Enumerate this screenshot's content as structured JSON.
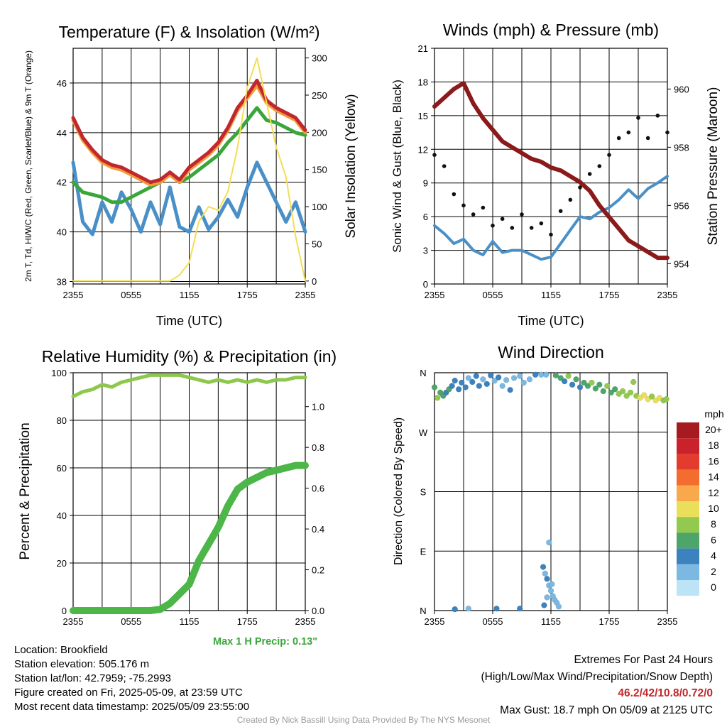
{
  "chart_data": [
    {
      "type": "line",
      "title": "Temperature (F) & Insolation (W/m²)",
      "xlabel": "Time (UTC)",
      "ylabel": "2m T, Td, HI/WC (Red, Green, Scarlet/Blue) & 9m T (Orange)",
      "y2label": "Solar Insolation (Yellow)",
      "x_ticks": [
        "2355",
        "0555",
        "1155",
        "1755",
        "2355"
      ],
      "ylim": [
        37.9,
        47.4
      ],
      "y_ticks": [
        38,
        40,
        42,
        44,
        46
      ],
      "y2lim": [
        -4,
        313
      ],
      "y2_ticks": [
        0,
        50,
        100,
        150,
        200,
        250,
        300
      ],
      "series": [
        {
          "color": "#c0282d",
          "axis": "left",
          "x": [
            0,
            1,
            2,
            3,
            4,
            5,
            6,
            7,
            8,
            9,
            10,
            11,
            12,
            13,
            14,
            15,
            16,
            17,
            18,
            19,
            20,
            21,
            22,
            23,
            24
          ],
          "values": [
            44.6,
            43.8,
            43.3,
            42.9,
            42.7,
            42.6,
            42.4,
            42.2,
            42.0,
            42.1,
            42.4,
            42.1,
            42.6,
            42.9,
            43.2,
            43.6,
            44.2,
            45.0,
            45.5,
            46.1,
            45.3,
            45.0,
            44.8,
            44.6,
            44.1
          ]
        },
        {
          "color": "#f39a3b",
          "axis": "left",
          "x": [
            0,
            1,
            2,
            3,
            4,
            5,
            6,
            7,
            8,
            9,
            10,
            11,
            12,
            13,
            14,
            15,
            16,
            17,
            18,
            19,
            20,
            21,
            22,
            23,
            24
          ],
          "values": [
            44.5,
            43.7,
            43.2,
            42.8,
            42.6,
            42.5,
            42.3,
            42.1,
            41.9,
            42.0,
            42.3,
            42.0,
            42.5,
            42.8,
            43.1,
            43.5,
            44.1,
            44.9,
            45.4,
            45.9,
            45.2,
            44.9,
            44.7,
            44.5,
            44.0
          ]
        },
        {
          "color": "#3aa63a",
          "axis": "left",
          "x": [
            0,
            1,
            2,
            3,
            4,
            5,
            6,
            7,
            8,
            9,
            10,
            11,
            12,
            13,
            14,
            15,
            16,
            17,
            18,
            19,
            20,
            21,
            22,
            23,
            24
          ],
          "values": [
            42.0,
            41.6,
            41.5,
            41.4,
            41.2,
            41.2,
            41.4,
            41.6,
            41.8,
            42.0,
            42.4,
            42.0,
            42.2,
            42.5,
            42.8,
            43.1,
            43.6,
            44.0,
            44.5,
            45.0,
            44.5,
            44.4,
            44.2,
            44.0,
            43.9
          ]
        },
        {
          "color": "#4a90c8",
          "axis": "left",
          "x": [
            0,
            1,
            2,
            3,
            4,
            5,
            6,
            7,
            8,
            9,
            10,
            11,
            12,
            13,
            14,
            15,
            16,
            17,
            18,
            19,
            20,
            21,
            22,
            23,
            24
          ],
          "values": [
            42.8,
            40.4,
            39.9,
            41.2,
            40.4,
            41.6,
            40.9,
            40.0,
            41.2,
            40.3,
            41.8,
            40.2,
            40.0,
            41.0,
            40.1,
            40.6,
            41.3,
            40.6,
            41.8,
            42.8,
            42.0,
            41.2,
            40.4,
            41.2,
            40.0
          ]
        },
        {
          "color": "#f4dd55",
          "axis": "right",
          "x": [
            0,
            1,
            2,
            3,
            4,
            5,
            6,
            7,
            8,
            9,
            10,
            11,
            12,
            13,
            14,
            15,
            16,
            17,
            18,
            19,
            20,
            21,
            22,
            23,
            24
          ],
          "values": [
            0,
            0,
            0,
            0,
            0,
            0,
            0,
            0,
            0,
            0,
            0,
            8,
            25,
            80,
            100,
            95,
            120,
            180,
            260,
            300,
            240,
            180,
            140,
            60,
            0
          ]
        }
      ]
    },
    {
      "type": "line",
      "title": "Winds (mph) & Pressure (mb)",
      "xlabel": "Time (UTC)",
      "ylabel": "Sonic Wind & Gust (Blue, Black)",
      "y2label": "Station Pressure (Maroon)",
      "x_ticks": [
        "2355",
        "0555",
        "1155",
        "1755",
        "2355"
      ],
      "ylim": [
        0,
        21
      ],
      "y_ticks": [
        0,
        3,
        6,
        9,
        12,
        15,
        18,
        21
      ],
      "y2lim": [
        953.3,
        961.4
      ],
      "y2_ticks": [
        954,
        956,
        958,
        960
      ],
      "series": [
        {
          "color": "#4a90c8",
          "axis": "left",
          "x": [
            0,
            1,
            2,
            3,
            4,
            5,
            6,
            7,
            8,
            9,
            10,
            11,
            12,
            13,
            14,
            15,
            16,
            17,
            18,
            19,
            20,
            21,
            22,
            23,
            24
          ],
          "values": [
            5.2,
            4.5,
            3.6,
            4.0,
            3.0,
            2.6,
            3.8,
            2.8,
            3.0,
            3.0,
            2.6,
            2.2,
            2.4,
            3.6,
            4.8,
            6.0,
            5.8,
            6.4,
            6.8,
            7.5,
            8.4,
            7.6,
            8.5,
            9.0,
            9.6
          ]
        },
        {
          "color": "#8b1a1a",
          "axis": "right",
          "x": [
            0,
            1,
            2,
            3,
            4,
            5,
            6,
            7,
            8,
            9,
            10,
            11,
            12,
            13,
            14,
            15,
            16,
            17,
            18,
            19,
            20,
            21,
            22,
            23,
            24
          ],
          "values": [
            959.4,
            959.7,
            960.0,
            960.2,
            959.5,
            959.0,
            958.6,
            958.2,
            958.0,
            957.8,
            957.6,
            957.5,
            957.3,
            957.2,
            957.0,
            956.8,
            956.5,
            956.0,
            955.6,
            955.2,
            954.8,
            954.6,
            954.4,
            954.2,
            954.2
          ]
        },
        {
          "color": "#111111",
          "axis": "left",
          "type": "scatter",
          "x": [
            0,
            1,
            2,
            3,
            4,
            5,
            6,
            7,
            8,
            9,
            10,
            11,
            12,
            13,
            14,
            15,
            16,
            17,
            18,
            19,
            20,
            21,
            22,
            23,
            24
          ],
          "values": [
            11.5,
            10.5,
            8.0,
            7.0,
            6.2,
            6.8,
            5.2,
            5.8,
            5.0,
            6.2,
            5.0,
            5.4,
            4.4,
            6.5,
            7.5,
            8.6,
            9.8,
            10.5,
            11.5,
            13.0,
            13.5,
            14.8,
            13.0,
            15.0,
            13.5
          ]
        }
      ]
    },
    {
      "type": "line",
      "title": "Relative Humidity (%) & Precipitation (in)",
      "xlabel": "",
      "ylabel": "Percent & Precipitation",
      "x_ticks": [
        "2355",
        "0555",
        "1155",
        "1755",
        "2355"
      ],
      "ylim": [
        0,
        100
      ],
      "y_ticks": [
        0,
        20,
        40,
        60,
        80,
        100
      ],
      "y2lim": [
        0,
        1.166
      ],
      "y2_ticks": [
        "0.0",
        "0.2",
        "0.4",
        "0.6",
        "0.8",
        "1.0"
      ],
      "note": "Max 1 H Precip: 0.13\"",
      "series": [
        {
          "color": "#8cc84b",
          "axis": "left",
          "x": [
            0,
            1,
            2,
            3,
            4,
            5,
            6,
            7,
            8,
            9,
            10,
            11,
            12,
            13,
            14,
            15,
            16,
            17,
            18,
            19,
            20,
            21,
            22,
            23,
            24
          ],
          "values": [
            90,
            92,
            93,
            95,
            94,
            96,
            97,
            98,
            99,
            99,
            99,
            99,
            98,
            97,
            96,
            97,
            96,
            97,
            96,
            97,
            96,
            97,
            97,
            98,
            98
          ]
        },
        {
          "color": "#4cb748",
          "axis": "left",
          "x": [
            0,
            1,
            2,
            3,
            4,
            5,
            6,
            7,
            8,
            9,
            10,
            11,
            12,
            13,
            14,
            15,
            16,
            17,
            18,
            19,
            20,
            21,
            22,
            23,
            24
          ],
          "values": [
            0,
            0,
            0,
            0,
            0,
            0,
            0,
            0,
            0,
            0.5,
            3,
            7,
            11,
            21,
            28,
            35,
            44,
            51,
            54,
            56,
            58,
            59,
            60,
            61,
            61
          ]
        }
      ]
    },
    {
      "type": "scatter",
      "title": "Wind Direction",
      "ylabel": "Direction (Colored By Speed)",
      "x_ticks": [
        "2355",
        "0555",
        "1155",
        "1755",
        "2355"
      ],
      "y_ticks": [
        "N",
        "E",
        "S",
        "W",
        "N"
      ],
      "legend_title": "mph",
      "legend": [
        {
          "label": "20+",
          "color": "#a51b1f"
        },
        {
          "label": "18",
          "color": "#c9222a"
        },
        {
          "label": "16",
          "color": "#e33b2e"
        },
        {
          "label": "14",
          "color": "#f46d2e"
        },
        {
          "label": "12",
          "color": "#f9a94b"
        },
        {
          "label": "10",
          "color": "#e9df5a"
        },
        {
          "label": "8",
          "color": "#92c94e"
        },
        {
          "label": "6",
          "color": "#4ea56a"
        },
        {
          "label": "4",
          "color": "#3b82bf"
        },
        {
          "label": "2",
          "color": "#7bb8e2"
        },
        {
          "label": "0",
          "color": "#bde3f6"
        }
      ],
      "legend_placement": "right",
      "points": [
        {
          "x": 0.0,
          "deg": 338,
          "mph": 6
        },
        {
          "x": 0.3,
          "deg": 322,
          "mph": 7
        },
        {
          "x": 0.6,
          "deg": 330,
          "mph": 5
        },
        {
          "x": 0.9,
          "deg": 325,
          "mph": 6
        },
        {
          "x": 1.2,
          "deg": 330,
          "mph": 4
        },
        {
          "x": 1.5,
          "deg": 335,
          "mph": 5
        },
        {
          "x": 1.8,
          "deg": 340,
          "mph": 4
        },
        {
          "x": 2.1,
          "deg": 348,
          "mph": 3
        },
        {
          "x": 2.5,
          "deg": 335,
          "mph": 4
        },
        {
          "x": 2.8,
          "deg": 345,
          "mph": 3
        },
        {
          "x": 3.2,
          "deg": 338,
          "mph": 4
        },
        {
          "x": 3.5,
          "deg": 352,
          "mph": 2
        },
        {
          "x": 3.9,
          "deg": 346,
          "mph": 3
        },
        {
          "x": 4.3,
          "deg": 355,
          "mph": 3
        },
        {
          "x": 4.6,
          "deg": 340,
          "mph": 4
        },
        {
          "x": 5.0,
          "deg": 350,
          "mph": 2
        },
        {
          "x": 5.4,
          "deg": 343,
          "mph": 3
        },
        {
          "x": 5.8,
          "deg": 356,
          "mph": 3
        },
        {
          "x": 6.2,
          "deg": 348,
          "mph": 2
        },
        {
          "x": 6.6,
          "deg": 353,
          "mph": 3
        },
        {
          "x": 7.0,
          "deg": 340,
          "mph": 2
        },
        {
          "x": 7.4,
          "deg": 349,
          "mph": 2
        },
        {
          "x": 7.8,
          "deg": 334,
          "mph": 3
        },
        {
          "x": 8.2,
          "deg": 352,
          "mph": 2
        },
        {
          "x": 8.8,
          "deg": 355,
          "mph": 2
        },
        {
          "x": 9.2,
          "deg": 345,
          "mph": 1
        },
        {
          "x": 9.8,
          "deg": 350,
          "mph": 2
        },
        {
          "x": 10.4,
          "deg": 357,
          "mph": 3
        },
        {
          "x": 11.0,
          "deg": 357,
          "mph": 2
        },
        {
          "x": 11.5,
          "deg": 357,
          "mph": 1
        },
        {
          "x": 12.5,
          "deg": 356,
          "mph": 6
        },
        {
          "x": 13.0,
          "deg": 352,
          "mph": 5
        },
        {
          "x": 13.4,
          "deg": 347,
          "mph": 4
        },
        {
          "x": 13.8,
          "deg": 355,
          "mph": 7
        },
        {
          "x": 14.2,
          "deg": 342,
          "mph": 4
        },
        {
          "x": 14.6,
          "deg": 350,
          "mph": 5
        },
        {
          "x": 15.0,
          "deg": 338,
          "mph": 4
        },
        {
          "x": 15.4,
          "deg": 345,
          "mph": 6
        },
        {
          "x": 15.8,
          "deg": 340,
          "mph": 5
        },
        {
          "x": 16.2,
          "deg": 345,
          "mph": 7
        },
        {
          "x": 16.6,
          "deg": 336,
          "mph": 5
        },
        {
          "x": 17.0,
          "deg": 342,
          "mph": 6
        },
        {
          "x": 17.4,
          "deg": 332,
          "mph": 5
        },
        {
          "x": 17.8,
          "deg": 340,
          "mph": 7
        },
        {
          "x": 18.2,
          "deg": 330,
          "mph": 6
        },
        {
          "x": 18.6,
          "deg": 335,
          "mph": 5
        },
        {
          "x": 19.0,
          "deg": 328,
          "mph": 7
        },
        {
          "x": 19.4,
          "deg": 332,
          "mph": 8
        },
        {
          "x": 19.8,
          "deg": 325,
          "mph": 7
        },
        {
          "x": 20.2,
          "deg": 330,
          "mph": 8
        },
        {
          "x": 20.5,
          "deg": 346,
          "mph": 8
        },
        {
          "x": 20.8,
          "deg": 325,
          "mph": 8
        },
        {
          "x": 21.2,
          "deg": 322,
          "mph": 10
        },
        {
          "x": 21.6,
          "deg": 326,
          "mph": 9
        },
        {
          "x": 22.0,
          "deg": 320,
          "mph": 10
        },
        {
          "x": 22.4,
          "deg": 324,
          "mph": 8
        },
        {
          "x": 22.8,
          "deg": 318,
          "mph": 10
        },
        {
          "x": 23.2,
          "deg": 322,
          "mph": 9
        },
        {
          "x": 23.6,
          "deg": 318,
          "mph": 8
        },
        {
          "x": 23.9,
          "deg": 320,
          "mph": 7
        },
        {
          "x": 11.8,
          "deg": 103,
          "mph": 1
        },
        {
          "x": 2.1,
          "deg": 2,
          "mph": 4
        },
        {
          "x": 3.5,
          "deg": 3,
          "mph": 2
        },
        {
          "x": 6.4,
          "deg": 3,
          "mph": 3
        },
        {
          "x": 8.8,
          "deg": 3,
          "mph": 3
        },
        {
          "x": 11.2,
          "deg": 66,
          "mph": 3
        },
        {
          "x": 11.4,
          "deg": 56,
          "mph": 2
        },
        {
          "x": 11.6,
          "deg": 48,
          "mph": 3
        },
        {
          "x": 11.8,
          "deg": 38,
          "mph": 2
        },
        {
          "x": 12.0,
          "deg": 30,
          "mph": 2
        },
        {
          "x": 12.2,
          "deg": 22,
          "mph": 2
        },
        {
          "x": 12.4,
          "deg": 16,
          "mph": 2
        },
        {
          "x": 12.6,
          "deg": 12,
          "mph": 1
        },
        {
          "x": 11.3,
          "deg": 8,
          "mph": 3
        },
        {
          "x": 11.6,
          "deg": 20,
          "mph": 2
        },
        {
          "x": 12.1,
          "deg": 40,
          "mph": 2
        },
        {
          "x": 12.8,
          "deg": 6,
          "mph": 1
        }
      ]
    }
  ],
  "info": {
    "location": "Location: Brookfield",
    "elevation": "Station elevation: 505.176 m",
    "latlon": "Station lat/lon: 42.7959; -75.2993",
    "created": "Figure created on Fri, 2025-05-09, at 23:59 UTC",
    "recent": "Most recent data timestamp: 2025/05/09 23:55:00",
    "extremes_title": "Extremes For Past 24 Hours",
    "extremes_sub": "(High/Low/Max Wind/Precipitation/Snow Depth)",
    "extremes_values": "46.2/42/10.8/0.72/0",
    "max_gust": "Max Gust: 18.7 mph On 05/09 at 2125 UTC",
    "credit": "Created By Nick Bassill Using Data Provided By The NYS Mesonet"
  }
}
